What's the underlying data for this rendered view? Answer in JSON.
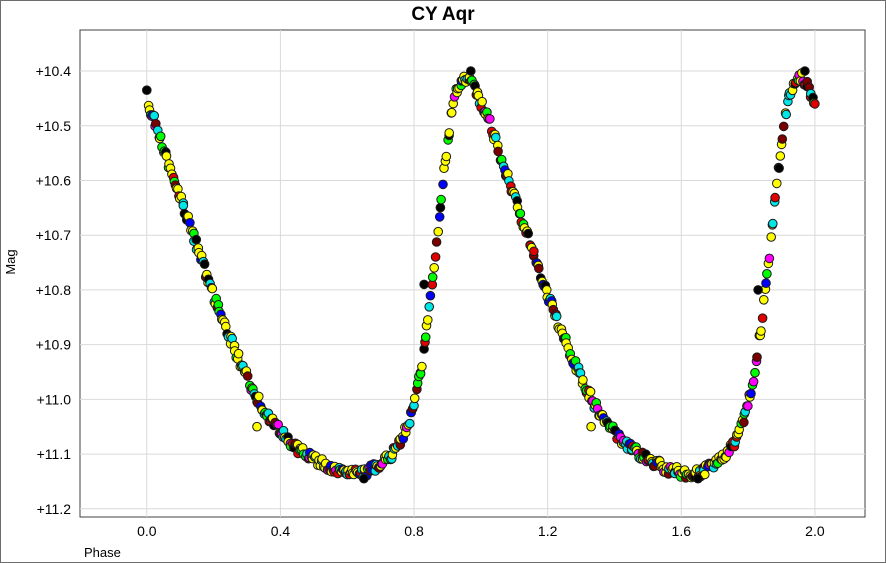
{
  "chart_data": {
    "type": "scatter",
    "title": "CY Aqr",
    "xlabel": "Phase",
    "ylabel": "Mag",
    "xlim": [
      -0.2,
      2.15
    ],
    "ylim": [
      11.215,
      10.325
    ],
    "y_inverted": true,
    "grid": true,
    "x_ticks": [
      0.0,
      0.4,
      0.8,
      1.2,
      1.6,
      2.0
    ],
    "x_tick_labels": [
      "0.0",
      "0.4",
      "0.8",
      "1.2",
      "1.6",
      "2.0"
    ],
    "y_ticks": [
      10.4,
      10.5,
      10.6,
      10.7,
      10.8,
      10.9,
      11.0,
      11.1,
      11.2
    ],
    "y_tick_labels": [
      "+10.4",
      "+10.5",
      "+10.6",
      "+10.7",
      "+10.8",
      "+10.9",
      "+11.0",
      "+11.1",
      "+11.2"
    ],
    "series_colors": [
      "#ffff00",
      "#00ff00",
      "#00e5e5",
      "#0000ff",
      "#ff00ff",
      "#e00000",
      "#000000",
      "#7a0000"
    ],
    "light_curve_template": [
      [
        0.0,
        10.46
      ],
      [
        0.03,
        10.5
      ],
      [
        0.06,
        10.56
      ],
      [
        0.1,
        10.63
      ],
      [
        0.15,
        10.72
      ],
      [
        0.2,
        10.81
      ],
      [
        0.25,
        10.89
      ],
      [
        0.3,
        10.96
      ],
      [
        0.35,
        11.02
      ],
      [
        0.4,
        11.06
      ],
      [
        0.45,
        11.09
      ],
      [
        0.5,
        11.11
      ],
      [
        0.55,
        11.125
      ],
      [
        0.6,
        11.135
      ],
      [
        0.65,
        11.135
      ],
      [
        0.7,
        11.12
      ],
      [
        0.75,
        11.09
      ],
      [
        0.78,
        11.05
      ],
      [
        0.8,
        11.01
      ],
      [
        0.82,
        10.95
      ],
      [
        0.84,
        10.86
      ],
      [
        0.86,
        10.76
      ],
      [
        0.88,
        10.64
      ],
      [
        0.9,
        10.53
      ],
      [
        0.92,
        10.45
      ],
      [
        0.94,
        10.42
      ],
      [
        0.96,
        10.41
      ],
      [
        0.98,
        10.43
      ],
      [
        1.0,
        10.46
      ]
    ],
    "highlighted_points": [
      {
        "x": 0.0,
        "y": 10.435,
        "color": "#000000"
      },
      {
        "x": 0.97,
        "y": 10.4,
        "color": "#000000"
      },
      {
        "x": 1.97,
        "y": 10.4,
        "color": "#000000"
      },
      {
        "x": 2.0,
        "y": 10.46,
        "color": "#e00000"
      },
      {
        "x": 0.65,
        "y": 11.145,
        "color": "#000000"
      },
      {
        "x": 1.65,
        "y": 11.145,
        "color": "#000000"
      },
      {
        "x": 0.83,
        "y": 10.79,
        "color": "#000000"
      },
      {
        "x": 1.83,
        "y": 10.8,
        "color": "#000000"
      },
      {
        "x": 0.33,
        "y": 11.05,
        "color": "#ffff00"
      },
      {
        "x": 1.33,
        "y": 11.05,
        "color": "#ffff00"
      }
    ]
  }
}
